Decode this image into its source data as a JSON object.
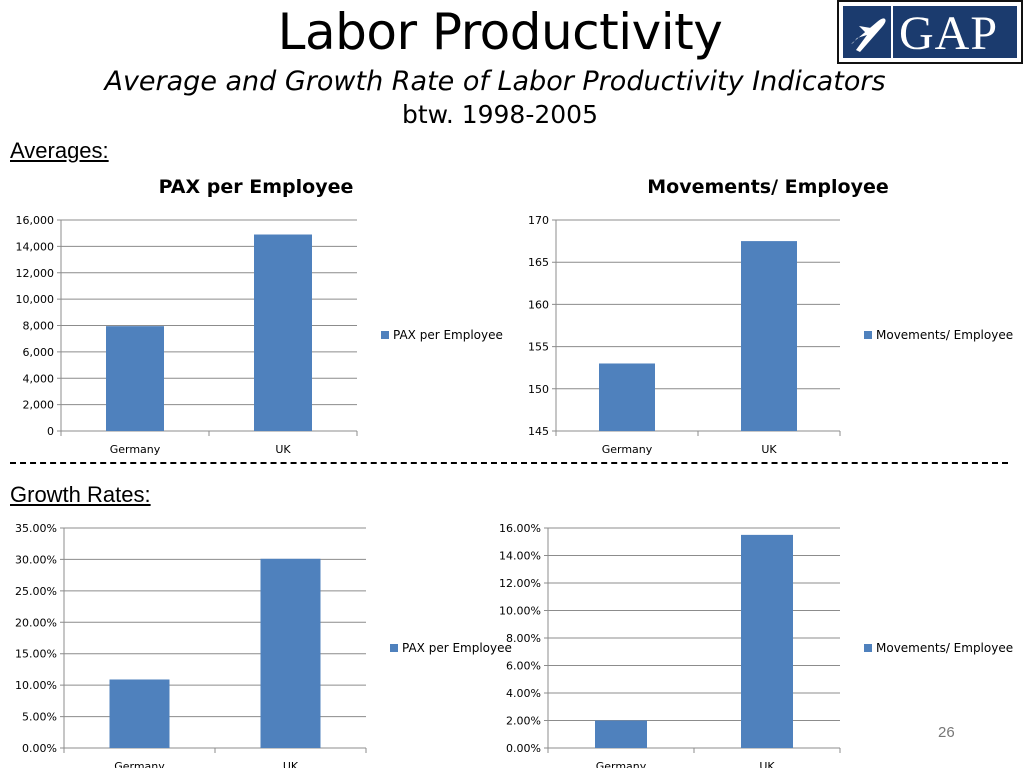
{
  "header": {
    "title": "Labor Productivity",
    "subtitle_line1": "Average and Growth Rate of Labor Productivity Indicators",
    "subtitle_line2": "btw. 1998-2005",
    "logo_text": "GAP",
    "logo_icon": "airplane-icon",
    "logo_color": "#1b3b6e"
  },
  "sections": {
    "averages": "Averages:",
    "growth": "Growth Rates:"
  },
  "page_number": "26",
  "bar_color": "#4f81bd",
  "chart_data": [
    {
      "type": "bar",
      "title": "PAX per Employee",
      "categories": [
        "Germany",
        "UK"
      ],
      "series": [
        {
          "name": "PAX per Employee",
          "values": [
            7950,
            14900
          ]
        }
      ],
      "ylim": [
        0,
        16000
      ],
      "yticks": [
        0,
        2000,
        4000,
        6000,
        8000,
        10000,
        12000,
        14000,
        16000
      ],
      "ytick_labels": [
        "0",
        "2,000",
        "4,000",
        "6,000",
        "8,000",
        "10,000",
        "12,000",
        "14,000",
        "16,000"
      ],
      "grid": true,
      "legend": "right"
    },
    {
      "type": "bar",
      "title": "Movements/ Employee",
      "categories": [
        "Germany",
        "UK"
      ],
      "series": [
        {
          "name": "Movements/ Employee",
          "values": [
            153,
            167.5
          ]
        }
      ],
      "ylim": [
        145,
        170
      ],
      "yticks": [
        145,
        150,
        155,
        160,
        165,
        170
      ],
      "ytick_labels": [
        "145",
        "150",
        "155",
        "160",
        "165",
        "170"
      ],
      "grid": true,
      "legend": "right"
    },
    {
      "type": "bar",
      "title": "",
      "categories": [
        "Germany",
        "UK"
      ],
      "series": [
        {
          "name": "PAX per Employee",
          "values": [
            0.109,
            0.301
          ]
        }
      ],
      "ylim": [
        0,
        0.35
      ],
      "yticks": [
        0,
        0.05,
        0.1,
        0.15,
        0.2,
        0.25,
        0.3,
        0.35
      ],
      "ytick_labels": [
        "0.00%",
        "5.00%",
        "10.00%",
        "15.00%",
        "20.00%",
        "25.00%",
        "30.00%",
        "35.00%"
      ],
      "grid": true,
      "legend": "right"
    },
    {
      "type": "bar",
      "title": "",
      "categories": [
        "Germany",
        "UK"
      ],
      "series": [
        {
          "name": "Movements/ Employee",
          "values": [
            0.02,
            0.155
          ]
        }
      ],
      "ylim": [
        0,
        0.16
      ],
      "yticks": [
        0,
        0.02,
        0.04,
        0.06,
        0.08,
        0.1,
        0.12,
        0.14,
        0.16
      ],
      "ytick_labels": [
        "0.00%",
        "2.00%",
        "4.00%",
        "6.00%",
        "8.00%",
        "10.00%",
        "12.00%",
        "14.00%",
        "16.00%"
      ],
      "grid": true,
      "legend": "right"
    }
  ]
}
